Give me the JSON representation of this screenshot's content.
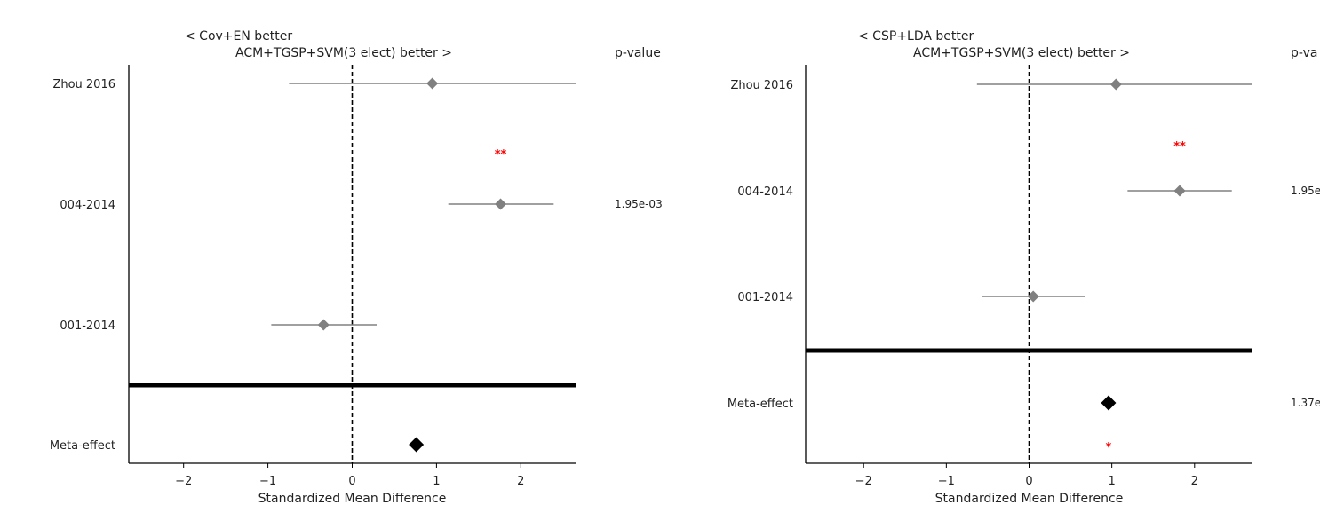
{
  "chart_data": [
    {
      "type": "forest",
      "title_left": "< Cov+EN better",
      "title_right": "ACM+TGSP+SVM(3 elect) better >",
      "pvalue_header": "p-value",
      "xlabel": "Standardized Mean Difference",
      "xlim": [
        -2.65,
        2.65
      ],
      "xticks": [
        -2,
        -1,
        0,
        1,
        2
      ],
      "xtick_labels": [
        "−2",
        "−1",
        "0",
        "1",
        "2"
      ],
      "reference_line": 0,
      "studies": [
        {
          "label": "Zhou 2016",
          "effect": 0.95,
          "ci": [
            -0.75,
            2.65
          ],
          "pvalue": "",
          "stars": ""
        },
        {
          "label": "004-2014",
          "effect": 1.76,
          "ci": [
            1.14,
            2.39
          ],
          "pvalue": "1.95e-03",
          "stars": "**"
        },
        {
          "label": "001-2014",
          "effect": -0.34,
          "ci": [
            -0.96,
            0.29
          ],
          "pvalue": "",
          "stars": ""
        }
      ],
      "meta": {
        "label": "Meta-effect",
        "effect": 0.76,
        "pvalue": "",
        "stars": ""
      },
      "colors": {
        "study": "#808080",
        "meta": "#000000",
        "stars": "#ff0000"
      }
    },
    {
      "type": "forest",
      "title_left": "< CSP+LDA better",
      "title_right": "ACM+TGSP+SVM(3 elect) better >",
      "pvalue_header": "p-va",
      "xlabel": "Standardized Mean Difference",
      "xlim": [
        -2.7,
        2.7
      ],
      "xticks": [
        -2,
        -1,
        0,
        1,
        2
      ],
      "xtick_labels": [
        "−2",
        "−1",
        "0",
        "1",
        "2"
      ],
      "reference_line": 0,
      "studies": [
        {
          "label": "Zhou 2016",
          "effect": 1.05,
          "ci": [
            -0.63,
            2.7
          ],
          "pvalue": "",
          "stars": ""
        },
        {
          "label": "004-2014",
          "effect": 1.82,
          "ci": [
            1.19,
            2.45
          ],
          "pvalue": "1.95e",
          "stars": "**"
        },
        {
          "label": "001-2014",
          "effect": 0.05,
          "ci": [
            -0.57,
            0.68
          ],
          "pvalue": "",
          "stars": ""
        }
      ],
      "meta": {
        "label": "Meta-effect",
        "effect": 0.96,
        "pvalue": "1.37e",
        "stars": "*"
      },
      "colors": {
        "study": "#808080",
        "meta": "#000000",
        "stars": "#ff0000"
      }
    }
  ]
}
